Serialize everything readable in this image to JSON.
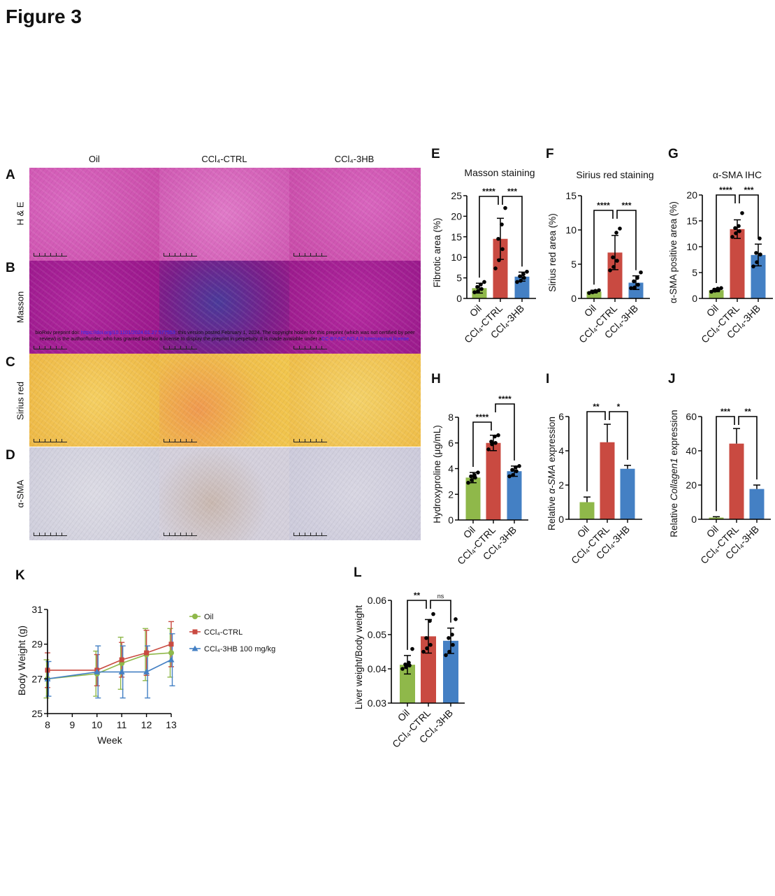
{
  "figure_title": "Figure 3",
  "histology": {
    "columns": [
      "Oil",
      "CCl₄-CTRL",
      "CCl₄-3HB"
    ],
    "rows": [
      {
        "letter": "A",
        "label": "H & E"
      },
      {
        "letter": "B",
        "label": "Masson"
      },
      {
        "letter": "C",
        "label": "Sirius red"
      },
      {
        "letter": "D",
        "label": "α-SMA"
      }
    ],
    "watermark": {
      "pre": "bioRxiv preprint doi: ",
      "doi": "https://doi.org/10.1101/2024.01.27.577553",
      "mid": "; this version posted February 1, 2024. The copyright holder for this preprint (which was not certified by peer review) is the author/funder, who has granted bioRxiv a license to display the preprint in perpetuity. It is made available under a",
      "license": "CC-BY-NC-ND 4.0 International license",
      "post": "."
    }
  },
  "colors": {
    "oil": "#8fb84a",
    "ctrl": "#c94a41",
    "hb": "#4480c4"
  },
  "chart_data": [
    {
      "panel": "E",
      "type": "bar",
      "title": "Masson  staining",
      "ylabel": [
        {
          "text": "Fibrotic area (%)",
          "italic": false
        }
      ],
      "categories": [
        "Oil",
        "CCl₄-CTRL",
        "CCl₄-3HB"
      ],
      "ylim": [
        0,
        25
      ],
      "yticks": [
        0,
        5,
        10,
        15,
        20,
        25
      ],
      "means": [
        2.5,
        14.5,
        5.3
      ],
      "sd": [
        1.2,
        5.0,
        1.1
      ],
      "points": [
        [
          1.5,
          1.8,
          2.3,
          2.8,
          3.4,
          4.0
        ],
        [
          7.3,
          9.3,
          12.0,
          14.5,
          18.0,
          22.0
        ],
        [
          4.0,
          4.3,
          5.0,
          5.4,
          5.9,
          6.5
        ]
      ],
      "significance": [
        "****",
        "***"
      ]
    },
    {
      "panel": "F",
      "type": "bar",
      "title": "Sirius red staining",
      "ylabel": [
        {
          "text": "Sirius red area (%)",
          "italic": false
        }
      ],
      "categories": [
        "Oil",
        "CCl₄-CTRL",
        "CCl₄-3HB"
      ],
      "ylim": [
        0,
        15
      ],
      "yticks": [
        0,
        5,
        10,
        15
      ],
      "means": [
        1.0,
        6.7,
        2.3
      ],
      "sd": [
        0.2,
        2.5,
        1.0
      ],
      "points": [
        [
          0.8,
          0.9,
          1.0,
          1.0,
          1.1,
          1.2
        ],
        [
          4.1,
          4.6,
          5.5,
          6.0,
          9.6,
          10.2
        ],
        [
          1.5,
          1.6,
          2.0,
          2.5,
          3.0,
          3.8
        ]
      ],
      "significance": [
        "****",
        "***"
      ]
    },
    {
      "panel": "G",
      "type": "bar",
      "title": "α-SMA IHC",
      "ylabel": [
        {
          "text": "α-SMA positive area (%)",
          "italic": false
        }
      ],
      "categories": [
        "Oil",
        "CCl₄-CTRL",
        "CCl₄-3HB"
      ],
      "ylim": [
        0,
        20
      ],
      "yticks": [
        0,
        5,
        10,
        15,
        20
      ],
      "means": [
        1.6,
        13.4,
        8.4
      ],
      "sd": [
        0.3,
        1.8,
        2.1
      ],
      "points": [
        [
          1.3,
          1.5,
          1.6,
          1.7,
          1.9,
          2.0
        ],
        [
          11.9,
          12.6,
          13.0,
          13.6,
          14.0,
          16.5
        ],
        [
          6.2,
          7.0,
          8.5,
          8.8,
          11.6
        ]
      ],
      "significance": [
        "****",
        "***"
      ]
    },
    {
      "panel": "H",
      "type": "bar",
      "title": "",
      "ylabel": [
        {
          "text": "Hydroxyproline (μg/mL)",
          "italic": false
        }
      ],
      "categories": [
        "Oil",
        "CCl₄-CTRL",
        "CCl₄-3HB"
      ],
      "ylim": [
        0,
        8
      ],
      "yticks": [
        0,
        2,
        4,
        6,
        8
      ],
      "means": [
        3.3,
        6.0,
        3.8
      ],
      "sd": [
        0.4,
        0.6,
        0.4
      ],
      "points": [
        [
          2.9,
          3.1,
          3.3,
          3.4,
          3.5,
          3.7
        ],
        [
          5.5,
          5.9,
          6.0,
          6.1,
          6.5,
          6.6
        ],
        [
          3.4,
          3.5,
          3.8,
          3.9,
          4.1,
          4.2
        ]
      ],
      "significance": [
        "****",
        "****"
      ]
    },
    {
      "panel": "I",
      "type": "bar",
      "title": "",
      "ylabel": [
        {
          "text": "Relative ",
          "italic": false
        },
        {
          "text": "α-SMA",
          "italic": true
        },
        {
          "text": " expression",
          "italic": false
        }
      ],
      "categories": [
        "Oil",
        "CCl₄-CTRL",
        "CCl₄-3HB"
      ],
      "ylim": [
        0,
        6
      ],
      "yticks": [
        0,
        2,
        4,
        6
      ],
      "means": [
        1.0,
        4.5,
        2.95
      ],
      "sd": [
        0.3,
        1.05,
        0.2
      ],
      "points": [],
      "significance": [
        "**",
        "*"
      ]
    },
    {
      "panel": "J",
      "type": "bar",
      "title": "",
      "ylabel": [
        {
          "text": "Relative ",
          "italic": false
        },
        {
          "text": "Collagen1",
          "italic": true
        },
        {
          "text": " expression",
          "italic": false
        }
      ],
      "categories": [
        "Oil",
        "CCl₄-CTRL",
        "CCl₄-3HB"
      ],
      "ylim": [
        0,
        60
      ],
      "yticks": [
        0,
        20,
        40,
        60
      ],
      "means": [
        1.0,
        44.2,
        17.7
      ],
      "sd": [
        0.5,
        8.8,
        2.3
      ],
      "points": [],
      "significance": [
        "***",
        "**"
      ]
    },
    {
      "panel": "L",
      "type": "bar",
      "title": "",
      "ylabel": [
        {
          "text": "Liver weight/Body weight",
          "italic": false
        }
      ],
      "categories": [
        "Oil",
        "CCl₄-CTRL",
        "CCl₄-3HB"
      ],
      "ylim": [
        0.03,
        0.06
      ],
      "yticks": [
        0.03,
        0.04,
        0.05,
        0.06
      ],
      "means": [
        0.0412,
        0.0495,
        0.0482
      ],
      "sd": [
        0.0027,
        0.0049,
        0.0037
      ],
      "points": [
        [
          0.04,
          0.0405,
          0.041,
          0.0413,
          0.0418,
          0.0458
        ],
        [
          0.045,
          0.046,
          0.047,
          0.049,
          0.054,
          0.056
        ],
        [
          0.044,
          0.045,
          0.047,
          0.049,
          0.05,
          0.0545
        ]
      ],
      "significance": [
        "**",
        "ns"
      ]
    },
    {
      "panel": "K",
      "type": "line",
      "title": "",
      "xlabel": "Week",
      "ylabel": "Body Weight (g)",
      "x": [
        8,
        10,
        11,
        12,
        13
      ],
      "xlim": [
        8,
        13
      ],
      "xticks": [
        8,
        9,
        10,
        11,
        12,
        13
      ],
      "ylim": [
        25,
        31
      ],
      "yticks": [
        25,
        27,
        29,
        31
      ],
      "legend_position": "right",
      "series": [
        {
          "name": "Oil",
          "marker": "circle",
          "values": [
            27.0,
            27.3,
            27.9,
            28.4,
            28.5
          ],
          "sd": [
            1.1,
            1.3,
            1.5,
            1.5,
            1.4
          ]
        },
        {
          "name": "CCl₄-CTRL",
          "marker": "square",
          "values": [
            27.5,
            27.5,
            28.1,
            28.5,
            29.0
          ],
          "sd": [
            1.0,
            0.9,
            1.0,
            1.3,
            1.3
          ]
        },
        {
          "name": "CCl₄-3HB 100 mg/kg",
          "marker": "triangle",
          "values": [
            27.0,
            27.4,
            27.4,
            27.4,
            28.1
          ],
          "sd": [
            1.0,
            1.5,
            1.5,
            1.5,
            1.5
          ]
        }
      ]
    }
  ]
}
